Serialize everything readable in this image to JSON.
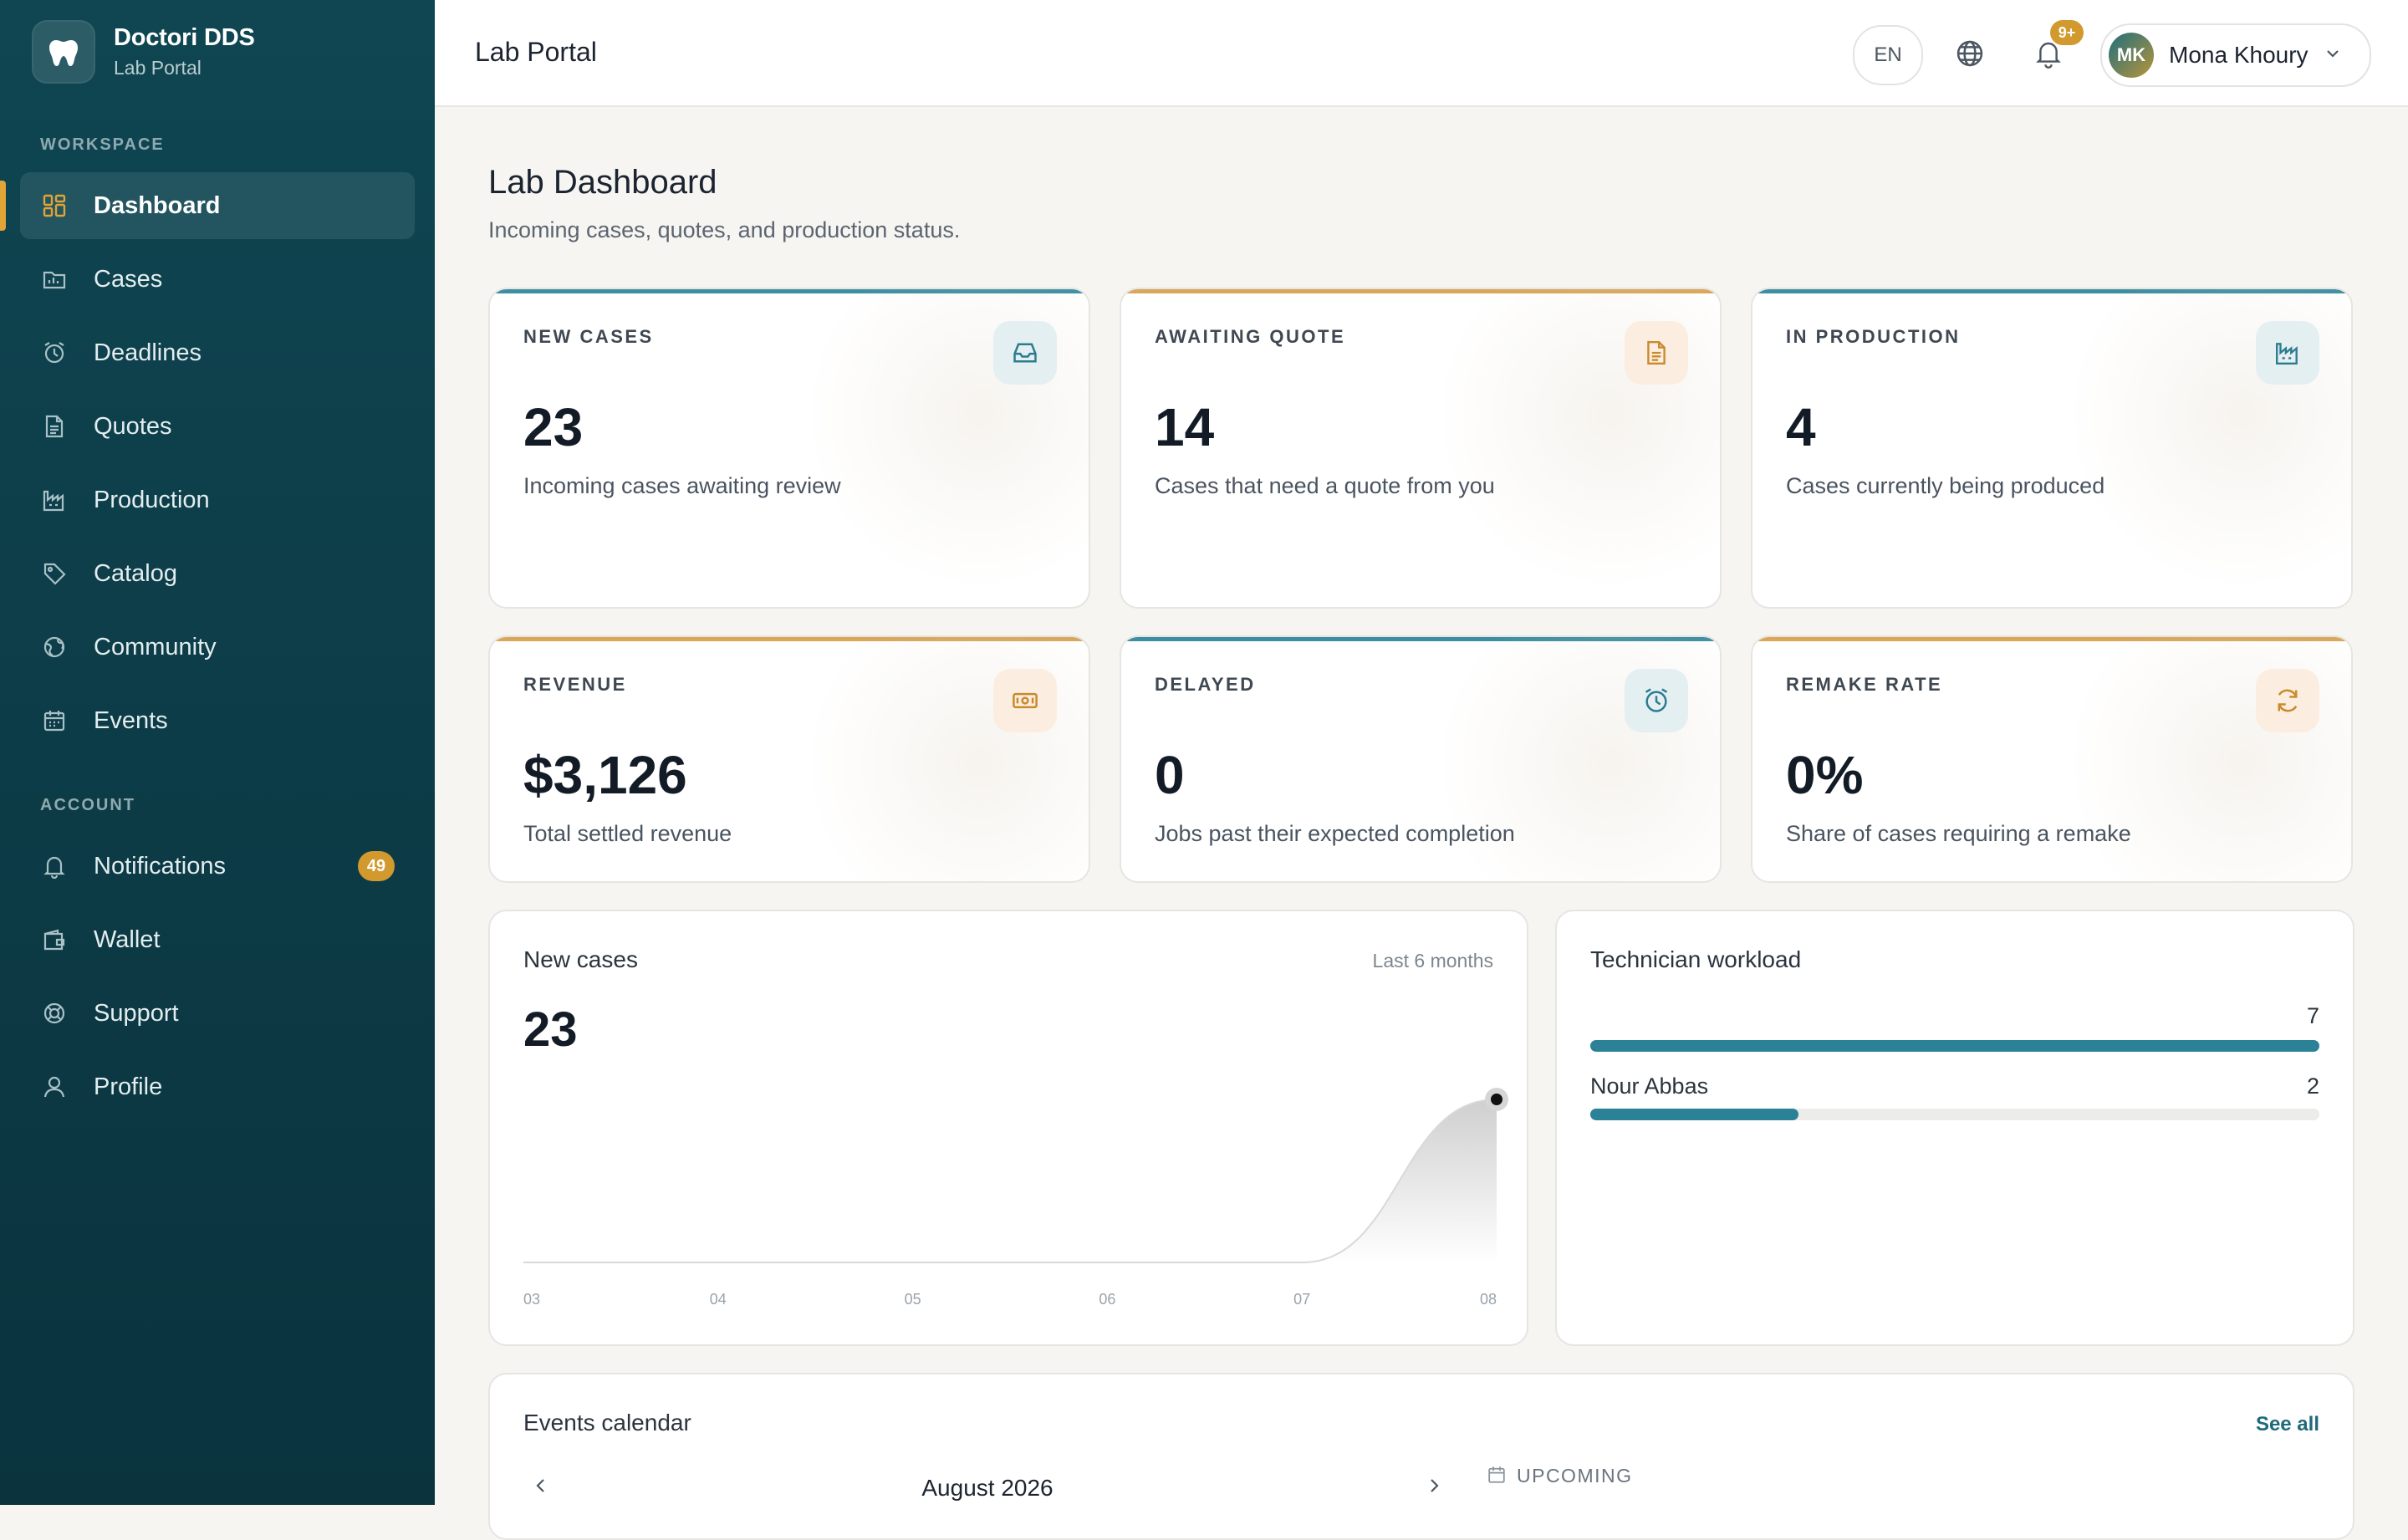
{
  "brand": {
    "name": "Doctori DDS",
    "subtitle": "Lab Portal"
  },
  "sidebar": {
    "workspace_label": "WORKSPACE",
    "account_label": "ACCOUNT",
    "workspace_items": [
      {
        "label": "Dashboard",
        "icon": "dashboard-icon",
        "active": true
      },
      {
        "label": "Cases",
        "icon": "cases-icon"
      },
      {
        "label": "Deadlines",
        "icon": "alarm-clock-icon"
      },
      {
        "label": "Quotes",
        "icon": "document-icon"
      },
      {
        "label": "Production",
        "icon": "factory-icon"
      },
      {
        "label": "Catalog",
        "icon": "tag-icon"
      },
      {
        "label": "Community",
        "icon": "globe-icon"
      },
      {
        "label": "Events",
        "icon": "calendar-icon"
      }
    ],
    "account_items": [
      {
        "label": "Notifications",
        "icon": "bell-icon",
        "badge": "49"
      },
      {
        "label": "Wallet",
        "icon": "wallet-icon"
      },
      {
        "label": "Support",
        "icon": "lifebuoy-icon"
      },
      {
        "label": "Profile",
        "icon": "user-icon"
      }
    ]
  },
  "topbar": {
    "title": "Lab Portal",
    "lang": "EN",
    "notif_badge": "9+",
    "user": {
      "initials": "MK",
      "name": "Mona Khoury"
    }
  },
  "page": {
    "title": "Lab Dashboard",
    "subtitle": "Incoming cases, quotes, and production status."
  },
  "stats": [
    {
      "label": "NEW CASES",
      "value": "23",
      "desc": "Incoming cases awaiting review",
      "icon": "inbox-icon",
      "accent": "#3d8ea2"
    },
    {
      "label": "AWAITING QUOTE",
      "value": "14",
      "desc": "Cases that need a quote from you",
      "icon": "document-icon",
      "accent": "#d9a65a"
    },
    {
      "label": "IN PRODUCTION",
      "value": "4",
      "desc": "Cases currently being produced",
      "icon": "factory-icon",
      "accent": "#3d8ea2"
    },
    {
      "label": "REVENUE",
      "value": "$3,126",
      "desc": "Total settled revenue",
      "icon": "cash-icon",
      "accent": "#d9a65a"
    },
    {
      "label": "DELAYED",
      "value": "0",
      "desc": "Jobs past their expected completion",
      "icon": "alarm-clock-icon",
      "accent": "#3d8ea2"
    },
    {
      "label": "REMAKE RATE",
      "value": "0%",
      "desc": "Share of cases requiring a remake",
      "icon": "refresh-icon",
      "accent": "#d9a65a"
    }
  ],
  "new_cases_panel": {
    "title": "New cases",
    "range": "Last 6 months",
    "total": "23"
  },
  "chart_data": {
    "type": "area",
    "title": "New cases",
    "x": [
      "03",
      "04",
      "05",
      "06",
      "07",
      "08"
    ],
    "values": [
      0,
      0,
      0,
      0,
      0,
      23
    ],
    "xlabel": "",
    "ylabel": "",
    "grid": false
  },
  "workload": {
    "title": "Technician workload",
    "rows": [
      {
        "name": "",
        "value": 7,
        "fraction": 1.0
      },
      {
        "name": "Nour Abbas",
        "value": 2,
        "fraction": 0.286
      }
    ]
  },
  "events": {
    "title": "Events calendar",
    "see_all": "See all",
    "month": "August 2026",
    "upcoming_label": "UPCOMING"
  },
  "colors": {
    "sidebar_bg": "#0c3a45",
    "accent_teal": "#2b8296",
    "accent_amber": "#d29a2e"
  }
}
